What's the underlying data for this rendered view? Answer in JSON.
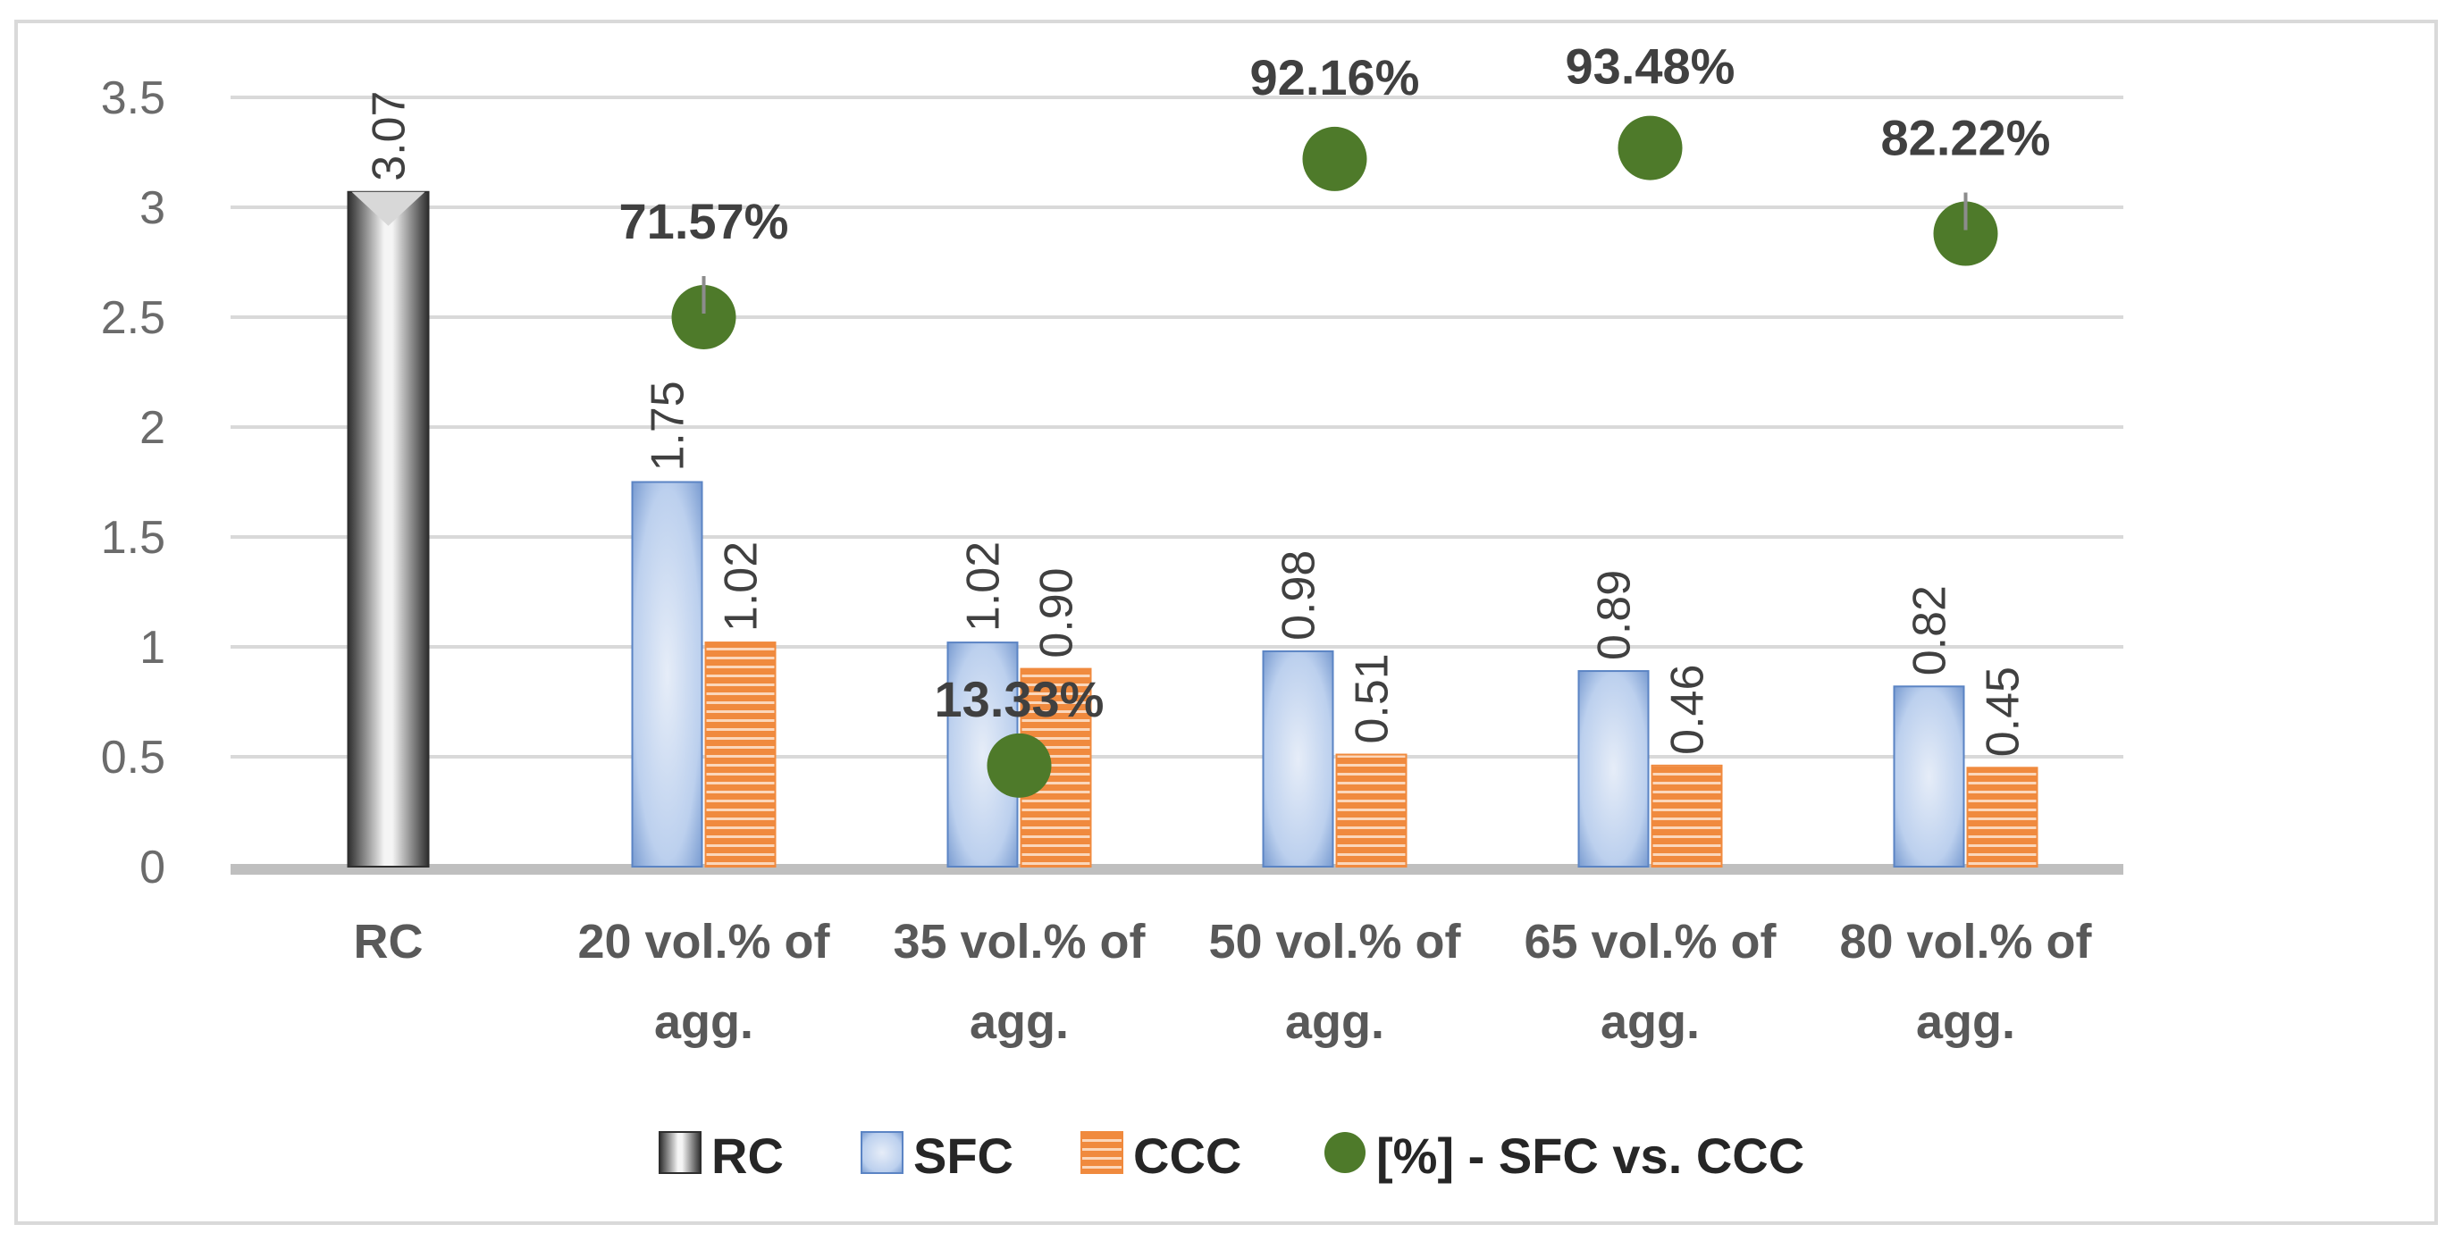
{
  "chart_data": {
    "type": "bar",
    "title": "",
    "xlabel": "",
    "ylabel": "",
    "ylim": [
      0,
      3.5
    ],
    "yticks": [
      "0",
      "0.5",
      "1",
      "1.5",
      "2",
      "2.5",
      "3",
      "3.5"
    ],
    "categories": [
      [
        "RC"
      ],
      [
        "20 vol.% of",
        "agg."
      ],
      [
        "35 vol.% of",
        "agg."
      ],
      [
        "50 vol.% of",
        "agg."
      ],
      [
        "65 vol.% of",
        "agg."
      ],
      [
        "80 vol.% of",
        "agg."
      ]
    ],
    "series": [
      {
        "name": "RC",
        "kind": "bar",
        "values": [
          3.07,
          null,
          null,
          null,
          null,
          null
        ],
        "labels": [
          "3.07",
          "",
          "",
          "",
          "",
          ""
        ]
      },
      {
        "name": "SFC",
        "kind": "bar",
        "values": [
          null,
          1.75,
          1.02,
          0.98,
          0.89,
          0.82
        ],
        "labels": [
          "",
          "1.75",
          "1.02",
          "0.98",
          "0.89",
          "0.82"
        ]
      },
      {
        "name": "CCC",
        "kind": "bar",
        "values": [
          null,
          1.02,
          0.9,
          0.51,
          0.46,
          0.45
        ],
        "labels": [
          "",
          "1.02",
          "0.90",
          "0.51",
          "0.46",
          "0.45"
        ]
      },
      {
        "name": "[%] - SFC vs. CCC",
        "kind": "scatter",
        "values": [
          null,
          2.5,
          0.46,
          3.22,
          3.27,
          2.88
        ],
        "labels": [
          "",
          "71.57%",
          "13.33%",
          "92.16%",
          "93.48%",
          "82.22%"
        ]
      }
    ],
    "legend": "bottom",
    "grid": true
  },
  "colors": {
    "rc_dark": "#3a3a3a",
    "rc_light": "#f2f2f2",
    "sfc_edge": "#5b84c4",
    "sfc_light": "#dce6f5",
    "ccc": "#f08a3e",
    "ccc_stripe": "#fbd7bb",
    "scatter": "#4e7a2a",
    "grid": "#d9d9d9",
    "axis": "#bfbfbf"
  }
}
